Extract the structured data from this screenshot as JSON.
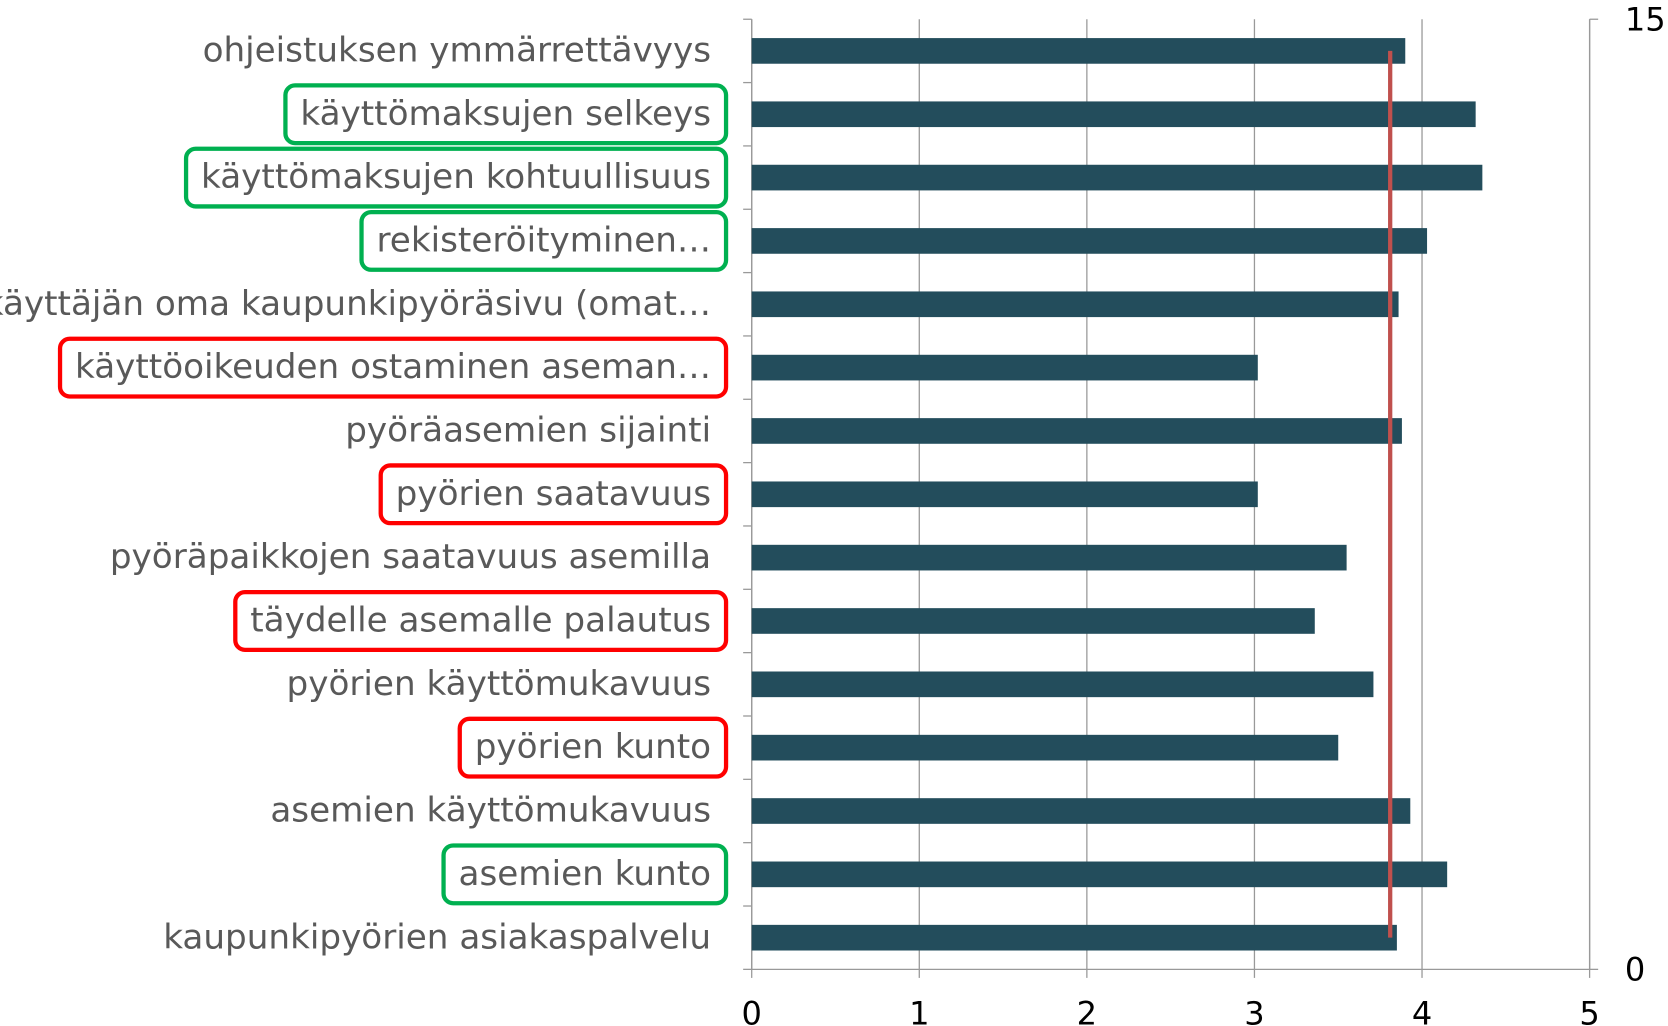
{
  "chart_data": {
    "type": "barh",
    "categories": [
      "ohjeistuksen ymmärrettävyys",
      "käyttömaksujen selkeys",
      "käyttömaksujen kohtuullisuus",
      "rekisteröityminen…",
      "käyttäjän oma kaupunkipyöräsivu (omat…",
      "käyttöoikeuden ostaminen aseman…",
      "pyöräasemien sijainti",
      "pyörien saatavuus",
      "pyöräpaikkojen saatavuus asemilla",
      "täydelle asemalle palautus",
      "pyörien käyttömukavuus",
      "pyörien kunto",
      "asemien käyttömukavuus",
      "asemien kunto",
      "kaupunkipyörien asiakaspalvelu"
    ],
    "values": [
      3.9,
      4.32,
      4.36,
      4.03,
      3.86,
      3.02,
      3.88,
      3.02,
      3.55,
      3.36,
      3.71,
      3.5,
      3.93,
      4.15,
      3.85
    ],
    "color": "#234d5c",
    "highlights": [
      null,
      "#00b050",
      "#00b050",
      "#00b050",
      null,
      "#ff0000",
      null,
      "#ff0000",
      null,
      "#ff0000",
      null,
      "#ff0000",
      null,
      "#00b050",
      null
    ],
    "average_line": {
      "value": 3.81,
      "color": "#c0504d"
    },
    "xlim": [
      0,
      5
    ],
    "xticks": [
      0,
      1,
      2,
      3,
      4,
      5
    ],
    "y2lim": [
      0,
      15
    ],
    "y2ticks": [
      0,
      15
    ],
    "grid": true
  }
}
